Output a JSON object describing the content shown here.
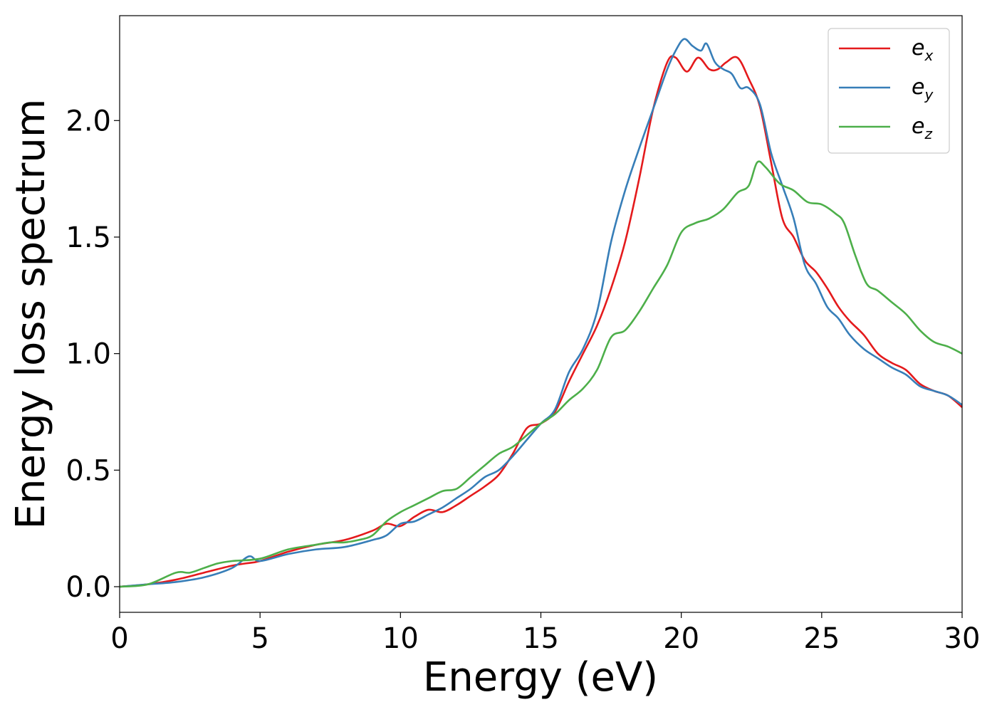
{
  "chart_data": {
    "type": "line",
    "title": "",
    "xlabel": "Energy (eV)",
    "ylabel": "Energy loss spectrum",
    "xlim": [
      0,
      30
    ],
    "ylim": [
      -0.11,
      2.45
    ],
    "xticks": [
      0,
      5,
      10,
      15,
      20,
      25,
      30
    ],
    "xtick_labels": [
      "0",
      "5",
      "10",
      "15",
      "20",
      "25",
      "30"
    ],
    "yticks": [
      0.0,
      0.5,
      1.0,
      1.5,
      2.0
    ],
    "ytick_labels": [
      "0.0",
      "0.5",
      "1.0",
      "1.5",
      "2.0"
    ],
    "grid": false,
    "legend_position": "top-right",
    "series": [
      {
        "name": "e_x",
        "label_base": "e",
        "label_sub": "x",
        "color": "#e41a1c",
        "x": [
          0,
          1,
          2,
          3,
          4,
          4.5,
          5,
          6,
          7,
          8,
          9,
          9.5,
          10,
          10.5,
          11,
          11.5,
          12,
          12.5,
          13,
          13.5,
          14,
          14.5,
          15,
          15.5,
          16,
          16.5,
          17,
          17.5,
          18,
          18.5,
          19,
          19.5,
          19.8,
          20.2,
          20.6,
          21,
          21.3,
          21.6,
          22,
          22.4,
          22.8,
          23.2,
          23.6,
          24,
          24.4,
          24.8,
          25.2,
          25.6,
          26,
          26.5,
          27,
          27.5,
          28,
          28.5,
          29,
          29.5,
          30
        ],
        "y": [
          0,
          0.01,
          0.03,
          0.06,
          0.09,
          0.1,
          0.11,
          0.15,
          0.18,
          0.2,
          0.24,
          0.27,
          0.26,
          0.3,
          0.33,
          0.32,
          0.35,
          0.39,
          0.43,
          0.48,
          0.57,
          0.68,
          0.7,
          0.75,
          0.88,
          1.0,
          1.12,
          1.28,
          1.48,
          1.75,
          2.05,
          2.25,
          2.27,
          2.21,
          2.27,
          2.22,
          2.22,
          2.25,
          2.27,
          2.18,
          2.06,
          1.82,
          1.58,
          1.5,
          1.4,
          1.35,
          1.28,
          1.2,
          1.14,
          1.08,
          1.0,
          0.96,
          0.93,
          0.87,
          0.84,
          0.82,
          0.77
        ]
      },
      {
        "name": "e_y",
        "label_base": "e",
        "label_sub": "y",
        "color": "#377eb8",
        "x": [
          0,
          1,
          2,
          3,
          4,
          4.6,
          5,
          6,
          7,
          8,
          9,
          9.5,
          10,
          10.5,
          11,
          11.5,
          12,
          12.5,
          13,
          13.5,
          14,
          14.5,
          15,
          15.5,
          16,
          16.5,
          17,
          17.5,
          18,
          18.5,
          19,
          19.5,
          19.8,
          20.1,
          20.4,
          20.7,
          20.9,
          21.2,
          21.5,
          21.8,
          22.1,
          22.4,
          22.8,
          23.2,
          23.6,
          24,
          24.4,
          24.8,
          25.2,
          25.6,
          26,
          26.5,
          27,
          27.5,
          28,
          28.5,
          29,
          29.5,
          30
        ],
        "y": [
          0,
          0.01,
          0.02,
          0.04,
          0.08,
          0.13,
          0.11,
          0.14,
          0.16,
          0.17,
          0.2,
          0.22,
          0.27,
          0.28,
          0.31,
          0.34,
          0.38,
          0.42,
          0.47,
          0.5,
          0.56,
          0.63,
          0.7,
          0.76,
          0.92,
          1.02,
          1.18,
          1.48,
          1.7,
          1.88,
          2.05,
          2.22,
          2.3,
          2.35,
          2.32,
          2.3,
          2.33,
          2.25,
          2.22,
          2.2,
          2.14,
          2.14,
          2.07,
          1.86,
          1.72,
          1.58,
          1.38,
          1.3,
          1.2,
          1.15,
          1.08,
          1.02,
          0.98,
          0.94,
          0.91,
          0.86,
          0.84,
          0.82,
          0.78
        ]
      },
      {
        "name": "e_z",
        "label_base": "e",
        "label_sub": "z",
        "color": "#4daf4a",
        "x": [
          0,
          1,
          2,
          2.5,
          3,
          3.5,
          4,
          5,
          6,
          7,
          7.5,
          8,
          8.5,
          9,
          9.5,
          10,
          10.5,
          11,
          11.5,
          12,
          12.5,
          13,
          13.5,
          14,
          14.5,
          15,
          15.5,
          16,
          16.5,
          17,
          17.5,
          18,
          18.5,
          19,
          19.5,
          20,
          20.5,
          21,
          21.5,
          22,
          22.4,
          22.7,
          23,
          23.5,
          24,
          24.5,
          25,
          25.5,
          25.8,
          26.2,
          26.6,
          27,
          27.5,
          28,
          28.5,
          29,
          29.5,
          30
        ],
        "y": [
          0,
          0.01,
          0.06,
          0.06,
          0.08,
          0.1,
          0.11,
          0.12,
          0.16,
          0.18,
          0.19,
          0.19,
          0.2,
          0.22,
          0.28,
          0.32,
          0.35,
          0.38,
          0.41,
          0.42,
          0.47,
          0.52,
          0.57,
          0.6,
          0.65,
          0.7,
          0.74,
          0.8,
          0.85,
          0.93,
          1.07,
          1.1,
          1.18,
          1.28,
          1.38,
          1.52,
          1.56,
          1.58,
          1.62,
          1.69,
          1.72,
          1.82,
          1.8,
          1.73,
          1.7,
          1.65,
          1.64,
          1.6,
          1.56,
          1.42,
          1.3,
          1.27,
          1.22,
          1.17,
          1.1,
          1.05,
          1.03,
          1.0
        ]
      }
    ]
  }
}
